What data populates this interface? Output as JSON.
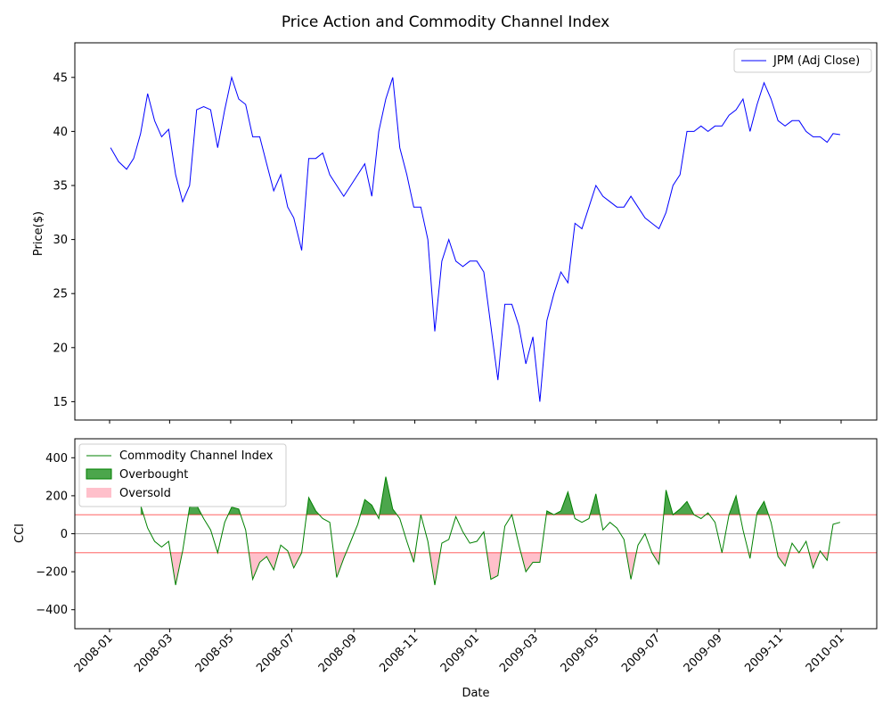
{
  "chart_data": {
    "type": "line",
    "title": "Price Action and Commodity Channel Index",
    "xlabel": "Date",
    "x_ticks": [
      "2008-01",
      "2008-03",
      "2008-05",
      "2008-07",
      "2008-09",
      "2008-11",
      "2009-01",
      "2009-03",
      "2009-05",
      "2009-07",
      "2009-09",
      "2009-11",
      "2010-01"
    ],
    "price_panel": {
      "ylabel": "Price($)",
      "ylim": [
        13.3,
        48.2
      ],
      "y_ticks": [
        "15",
        "20",
        "25",
        "30",
        "35",
        "40",
        "45"
      ],
      "legend_position": "upper right",
      "series": [
        {
          "name": "JPM (Adj Close)",
          "color": "#0000ff",
          "x": [
            "2008-01-02",
            "2008-01-10",
            "2008-01-18",
            "2008-01-25",
            "2008-02-01",
            "2008-02-08",
            "2008-02-15",
            "2008-02-22",
            "2008-02-29",
            "2008-03-07",
            "2008-03-14",
            "2008-03-21",
            "2008-03-28",
            "2008-04-04",
            "2008-04-11",
            "2008-04-18",
            "2008-04-25",
            "2008-05-02",
            "2008-05-09",
            "2008-05-16",
            "2008-05-23",
            "2008-05-30",
            "2008-06-06",
            "2008-06-13",
            "2008-06-20",
            "2008-06-27",
            "2008-07-03",
            "2008-07-11",
            "2008-07-18",
            "2008-07-25",
            "2008-08-01",
            "2008-08-08",
            "2008-08-15",
            "2008-08-22",
            "2008-08-29",
            "2008-09-05",
            "2008-09-12",
            "2008-09-19",
            "2008-09-26",
            "2008-10-03",
            "2008-10-10",
            "2008-10-17",
            "2008-10-24",
            "2008-10-31",
            "2008-11-07",
            "2008-11-14",
            "2008-11-21",
            "2008-11-28",
            "2008-12-05",
            "2008-12-12",
            "2008-12-19",
            "2008-12-26",
            "2009-01-02",
            "2009-01-09",
            "2009-01-16",
            "2009-01-23",
            "2009-01-30",
            "2009-02-06",
            "2009-02-13",
            "2009-02-20",
            "2009-02-27",
            "2009-03-06",
            "2009-03-13",
            "2009-03-20",
            "2009-03-27",
            "2009-04-03",
            "2009-04-10",
            "2009-04-17",
            "2009-04-24",
            "2009-05-01",
            "2009-05-08",
            "2009-05-15",
            "2009-05-22",
            "2009-05-29",
            "2009-06-05",
            "2009-06-12",
            "2009-06-19",
            "2009-06-26",
            "2009-07-03",
            "2009-07-10",
            "2009-07-17",
            "2009-07-24",
            "2009-07-31",
            "2009-08-07",
            "2009-08-14",
            "2009-08-21",
            "2009-08-28",
            "2009-09-04",
            "2009-09-11",
            "2009-09-18",
            "2009-09-25",
            "2009-10-02",
            "2009-10-09",
            "2009-10-16",
            "2009-10-23",
            "2009-10-30",
            "2009-11-06",
            "2009-11-13",
            "2009-11-20",
            "2009-11-27",
            "2009-12-04",
            "2009-12-11",
            "2009-12-18",
            "2009-12-24",
            "2009-12-31"
          ],
          "values": [
            38.5,
            37.2,
            36.5,
            37.5,
            39.8,
            43.5,
            41,
            39.5,
            40.2,
            36,
            33.5,
            35,
            42,
            42.3,
            42,
            38.5,
            42,
            45,
            43,
            42.5,
            39.5,
            39.5,
            37,
            34.5,
            36,
            33,
            32,
            29,
            37.5,
            37.5,
            38,
            36,
            35,
            34,
            35,
            36,
            37,
            34,
            40,
            43,
            45,
            38.5,
            36,
            33,
            33,
            30,
            21.5,
            28,
            30,
            28,
            27.5,
            28,
            28,
            27,
            22,
            17,
            24,
            24,
            22,
            18.5,
            21,
            15,
            22.5,
            25,
            27,
            26,
            31.5,
            31,
            33,
            35,
            34,
            33.5,
            33,
            33,
            34,
            33,
            32,
            31.5,
            31,
            32.5,
            35,
            36,
            40,
            40,
            40.5,
            40,
            40.5,
            40.5,
            41.5,
            42,
            43,
            40,
            42.5,
            44.5,
            43,
            41,
            40.5,
            41,
            41,
            40,
            39.5,
            39.5,
            39,
            39.8,
            39.7
          ]
        }
      ]
    },
    "cci_panel": {
      "ylabel": "CCI",
      "ylim": [
        -500,
        500
      ],
      "y_ticks": [
        "400",
        "200",
        "0",
        "−200",
        "−400"
      ],
      "overbought_level": 100,
      "oversold_level": -100,
      "legend_position": "upper left",
      "series": [
        {
          "name": "Commodity Channel Index",
          "color": "#008000",
          "x": [
            "2008-02-01",
            "2008-02-08",
            "2008-02-15",
            "2008-02-22",
            "2008-02-29",
            "2008-03-07",
            "2008-03-14",
            "2008-03-21",
            "2008-03-28",
            "2008-04-04",
            "2008-04-11",
            "2008-04-18",
            "2008-04-25",
            "2008-05-02",
            "2008-05-09",
            "2008-05-16",
            "2008-05-23",
            "2008-05-30",
            "2008-06-06",
            "2008-06-13",
            "2008-06-20",
            "2008-06-27",
            "2008-07-03",
            "2008-07-11",
            "2008-07-18",
            "2008-07-25",
            "2008-08-01",
            "2008-08-08",
            "2008-08-15",
            "2008-08-22",
            "2008-08-29",
            "2008-09-05",
            "2008-09-12",
            "2008-09-19",
            "2008-09-26",
            "2008-10-03",
            "2008-10-10",
            "2008-10-17",
            "2008-10-24",
            "2008-10-31",
            "2008-11-07",
            "2008-11-14",
            "2008-11-21",
            "2008-11-28",
            "2008-12-05",
            "2008-12-12",
            "2008-12-19",
            "2008-12-26",
            "2009-01-02",
            "2009-01-09",
            "2009-01-16",
            "2009-01-23",
            "2009-01-30",
            "2009-02-06",
            "2009-02-13",
            "2009-02-20",
            "2009-02-27",
            "2009-03-06",
            "2009-03-13",
            "2009-03-20",
            "2009-03-27",
            "2009-04-03",
            "2009-04-10",
            "2009-04-17",
            "2009-04-24",
            "2009-05-01",
            "2009-05-08",
            "2009-05-15",
            "2009-05-22",
            "2009-05-29",
            "2009-06-05",
            "2009-06-12",
            "2009-06-19",
            "2009-06-26",
            "2009-07-03",
            "2009-07-10",
            "2009-07-17",
            "2009-07-24",
            "2009-07-31",
            "2009-08-07",
            "2009-08-14",
            "2009-08-21",
            "2009-08-28",
            "2009-09-04",
            "2009-09-11",
            "2009-09-18",
            "2009-09-25",
            "2009-10-02",
            "2009-10-09",
            "2009-10-16",
            "2009-10-23",
            "2009-10-30",
            "2009-11-06",
            "2009-11-13",
            "2009-11-20",
            "2009-11-27",
            "2009-12-04",
            "2009-12-11",
            "2009-12-18",
            "2009-12-24",
            "2009-12-31"
          ],
          "values": [
            150,
            30,
            -40,
            -70,
            -40,
            -270,
            -90,
            140,
            150,
            80,
            20,
            -100,
            60,
            140,
            130,
            20,
            -240,
            -150,
            -120,
            -190,
            -60,
            -90,
            -180,
            -100,
            190,
            120,
            80,
            60,
            -230,
            -130,
            -40,
            50,
            180,
            150,
            80,
            300,
            130,
            80,
            -40,
            -150,
            100,
            -40,
            -270,
            -50,
            -30,
            90,
            10,
            -50,
            -40,
            10,
            -240,
            -220,
            40,
            100,
            -60,
            -200,
            -150,
            -150,
            120,
            100,
            120,
            220,
            80,
            60,
            80,
            210,
            20,
            60,
            30,
            -30,
            -240,
            -60,
            0,
            -100,
            -160,
            230,
            100,
            130,
            170,
            100,
            80,
            110,
            60,
            -100,
            100,
            200,
            20,
            -130,
            110,
            170,
            60,
            -120,
            -170,
            -50,
            -100,
            -40,
            -180,
            -90,
            -140,
            50,
            60
          ]
        }
      ],
      "legend": [
        "Commodity Channel Index",
        "Overbought",
        "Oversold"
      ],
      "overbought_color": "#008000",
      "oversold_color": "#ffc0cb"
    }
  }
}
